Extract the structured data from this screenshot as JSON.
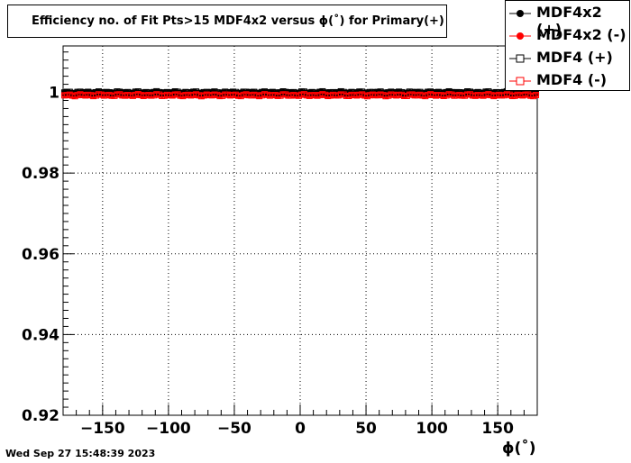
{
  "chart_data": {
    "type": "scatter",
    "title": "Efficiency no. of Fit Pts>15 MDF4x2 versus ϕ(˚) for Primary(+)",
    "xlabel": "ϕ(˚)",
    "ylabel": "",
    "xlim": [
      -180,
      180
    ],
    "ylim": [
      0.92,
      1.0115
    ],
    "xticks": [
      -150,
      -100,
      -50,
      0,
      50,
      100,
      150
    ],
    "xtick_labels": [
      "−150",
      "−100",
      "−50",
      "0",
      "50",
      "100",
      "150"
    ],
    "yticks": [
      0.92,
      0.94,
      0.96,
      0.98,
      1.0
    ],
    "ytick_labels": [
      "0.92",
      "0.94",
      "0.96",
      "0.98",
      "1"
    ],
    "grid": true,
    "legend_position": "top-right",
    "series": [
      {
        "name": "MDF4x2 (+)",
        "color": "#000000",
        "marker": "filled-circle",
        "value": 1.0
      },
      {
        "name": "MDF4x2 (-)",
        "color": "#ff0000",
        "marker": "filled-circle",
        "value": 0.9993
      },
      {
        "name": "MDF4 (+)",
        "color": "#000000",
        "marker": "open-square",
        "value": 1.0
      },
      {
        "name": "MDF4 (-)",
        "color": "#ff0000",
        "marker": "open-square",
        "value": 0.9993
      }
    ]
  },
  "footer": {
    "timestamp": "Wed Sep 27 15:48:39 2023"
  }
}
